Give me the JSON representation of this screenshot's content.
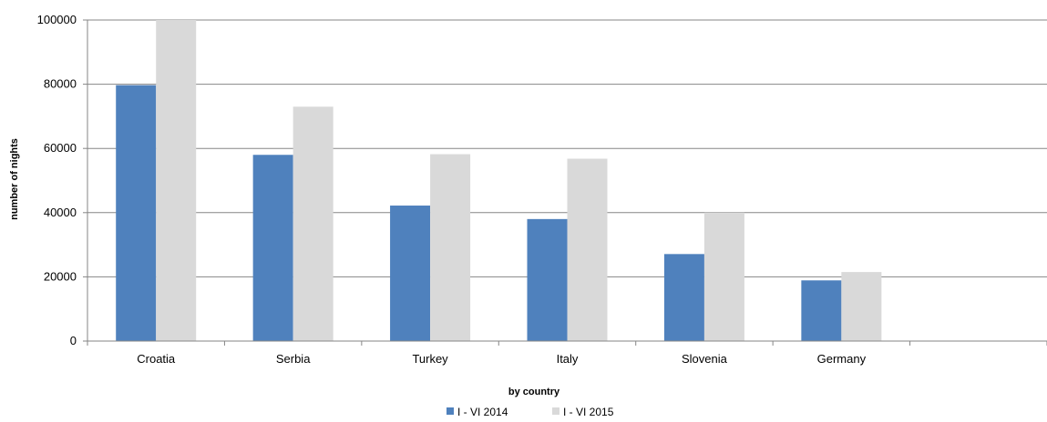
{
  "chart_data": {
    "type": "bar",
    "categories": [
      "Croatia",
      "Serbia",
      "Turkey",
      "Italy",
      "Slovenia",
      "Germany"
    ],
    "series": [
      {
        "name": "I - VI 2014",
        "color": "#4F81BD",
        "values": [
          79700,
          58000,
          42200,
          38000,
          27100,
          18900
        ]
      },
      {
        "name": "I - VI 2015",
        "color": "#D9D9D9",
        "values": [
          100000,
          73000,
          58200,
          56800,
          40000,
          21500
        ]
      }
    ],
    "title": "",
    "xlabel": "by country",
    "ylabel": "number of nights",
    "ylim": [
      0,
      100000
    ],
    "yticks": [
      0,
      20000,
      40000,
      60000,
      80000,
      100000
    ],
    "grid": true,
    "legend_position": "bottom"
  }
}
